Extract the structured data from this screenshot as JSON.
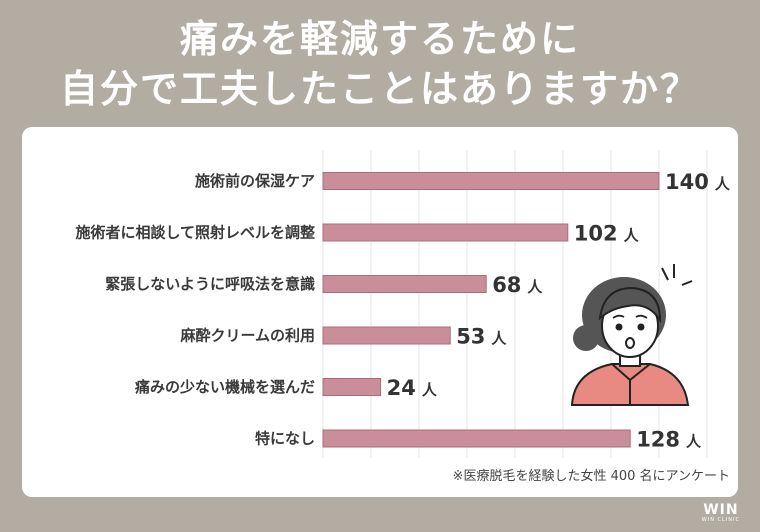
{
  "title": {
    "line1": "痛みを軽減するために",
    "line2": "自分で工夫したことはありますか？"
  },
  "footnote": "※医療脱毛を経験した女性 400 名にアンケート",
  "logo": {
    "brand": "WIN",
    "sub": "WIN CLINIC"
  },
  "colors": {
    "background": "#b3aca3",
    "bar": "#c98e99",
    "bar_stroke": "#a86e7a",
    "grid": "#e3e3e3",
    "card": "#ffffff"
  },
  "chart_data": {
    "type": "bar",
    "orientation": "horizontal",
    "unit": "人",
    "categories": [
      "施術前の保湿ケア",
      "施術者に相談して照射レベルを調整",
      "緊張しないように呼吸法を意識",
      "麻酔クリームの利用",
      "痛みの少ない機械を選んだ",
      "特になし"
    ],
    "values": [
      140,
      102,
      68,
      53,
      24,
      128
    ],
    "xlim": [
      0,
      160
    ],
    "grid": true
  }
}
